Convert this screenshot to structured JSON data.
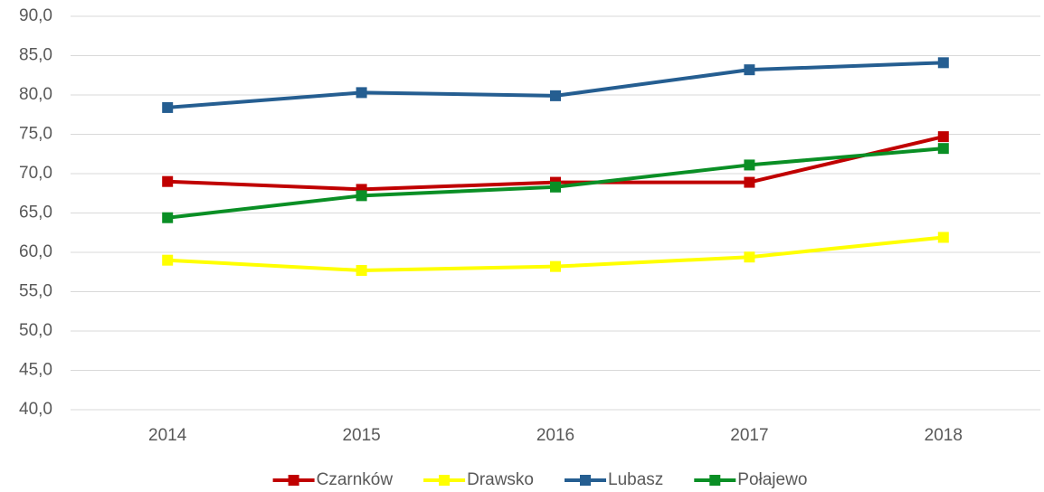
{
  "chart_data": {
    "type": "line",
    "categories": [
      "2014",
      "2015",
      "2016",
      "2017",
      "2018"
    ],
    "series": [
      {
        "name": "Czarnków",
        "color": "#c00000",
        "values": [
          69.0,
          68.0,
          68.9,
          68.9,
          74.7
        ]
      },
      {
        "name": "Drawsko",
        "color": "#ffff00",
        "values": [
          59.0,
          57.7,
          58.2,
          59.4,
          61.9
        ]
      },
      {
        "name": "Lubasz",
        "color": "#255e91",
        "values": [
          78.4,
          80.3,
          79.9,
          83.2,
          84.1
        ]
      },
      {
        "name": "Połajewo",
        "color": "#0a8f25",
        "values": [
          64.4,
          67.2,
          68.3,
          71.1,
          73.2
        ]
      }
    ],
    "ylim": [
      40,
      90
    ],
    "yticks": [
      {
        "value": 40,
        "label": "40,0"
      },
      {
        "value": 45,
        "label": "45,0"
      },
      {
        "value": 50,
        "label": "50,0"
      },
      {
        "value": 55,
        "label": "55,0"
      },
      {
        "value": 60,
        "label": "60,0"
      },
      {
        "value": 65,
        "label": "65,0"
      },
      {
        "value": 70,
        "label": "70,0"
      },
      {
        "value": 75,
        "label": "75,0"
      },
      {
        "value": 80,
        "label": "80,0"
      },
      {
        "value": 85,
        "label": "85,0"
      },
      {
        "value": 90,
        "label": "90,0"
      }
    ],
    "grid": true,
    "legend": "bottom"
  }
}
